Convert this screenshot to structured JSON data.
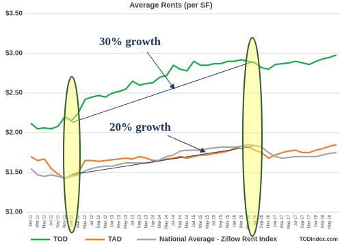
{
  "chart_data": {
    "type": "line",
    "title": "Average Rents (per SF)",
    "categories": [
      "Jan-11",
      "Mar-11",
      "May-11",
      "Jul-11",
      "Sep-11",
      "Nov-11",
      "Jan-12",
      "Mar-12",
      "May-12",
      "Jul-12",
      "Sep-12",
      "Nov-12",
      "Jan-13",
      "Mar-13",
      "May-13",
      "Jul-13",
      "Sep-13",
      "Nov-13",
      "Jan-14",
      "Mar-14",
      "May-14",
      "Jul-14",
      "Sep-14",
      "Nov-14",
      "Jan-15",
      "Mar-15",
      "May-15",
      "Jul-15",
      "Sep-15",
      "Nov-15",
      "Jan-16",
      "Mar-16",
      "May-16",
      "Jul-16",
      "Sep-16",
      "Nov-16",
      "Jan-17",
      "Mar-17",
      "May-17",
      "Jul-17",
      "Sep-17",
      "Nov-17",
      "Jan-18",
      "Mar-18",
      "May-18",
      null
    ],
    "series": [
      {
        "name": "TOD",
        "color": "#1fa84a",
        "values": [
          2.12,
          2.05,
          2.06,
          2.05,
          2.08,
          2.2,
          2.15,
          2.25,
          2.42,
          2.45,
          2.47,
          2.45,
          2.5,
          2.52,
          2.55,
          2.65,
          2.6,
          2.62,
          2.63,
          2.7,
          2.72,
          2.85,
          2.8,
          2.78,
          2.9,
          2.85,
          2.85,
          2.87,
          2.87,
          2.9,
          2.9,
          2.92,
          2.9,
          2.88,
          2.82,
          2.8,
          2.86,
          2.87,
          2.88,
          2.9,
          2.88,
          2.86,
          2.9,
          2.93,
          2.95,
          2.98
        ]
      },
      {
        "name": "TAD",
        "color": "#ed7d31",
        "values": [
          1.7,
          1.65,
          1.67,
          1.55,
          1.48,
          1.42,
          1.47,
          1.5,
          1.65,
          1.65,
          1.64,
          1.65,
          1.66,
          1.67,
          1.68,
          1.67,
          1.7,
          1.68,
          1.65,
          1.65,
          1.67,
          1.68,
          1.7,
          1.68,
          1.7,
          1.72,
          1.72,
          1.74,
          1.75,
          1.77,
          1.8,
          1.83,
          1.82,
          1.78,
          1.75,
          1.68,
          1.72,
          1.75,
          1.77,
          1.78,
          1.75,
          1.75,
          1.78,
          1.8,
          1.83,
          1.85
        ]
      },
      {
        "name": "National Average - Zillow Rent Index",
        "color": "#a6a6a6",
        "values": [
          1.55,
          1.47,
          1.45,
          1.47,
          1.45,
          1.43,
          1.45,
          1.47,
          1.52,
          1.55,
          1.57,
          1.58,
          1.58,
          1.6,
          1.62,
          1.62,
          1.62,
          1.62,
          1.63,
          1.66,
          1.7,
          1.72,
          1.77,
          1.78,
          1.78,
          1.78,
          1.8,
          1.81,
          1.82,
          1.82,
          1.82,
          1.83,
          1.85,
          1.84,
          1.82,
          1.75,
          1.7,
          1.68,
          1.69,
          1.7,
          1.7,
          1.7,
          1.7,
          1.72,
          1.74,
          1.75
        ]
      }
    ],
    "ylim": [
      1.0,
      3.5
    ],
    "yticks": [
      {
        "value": 1.0,
        "label": "$1.00"
      },
      {
        "value": 1.5,
        "label": "$1.50"
      },
      {
        "value": 2.0,
        "label": "$2.00"
      },
      {
        "value": 2.5,
        "label": "$2.50"
      },
      {
        "value": 3.0,
        "label": "$3.00"
      },
      {
        "value": 3.5,
        "label": "$3.50"
      }
    ],
    "grid": true,
    "legend": "bottom",
    "annotations": [
      "30% growth",
      "20% growth"
    ],
    "source": "TODindex.com"
  }
}
